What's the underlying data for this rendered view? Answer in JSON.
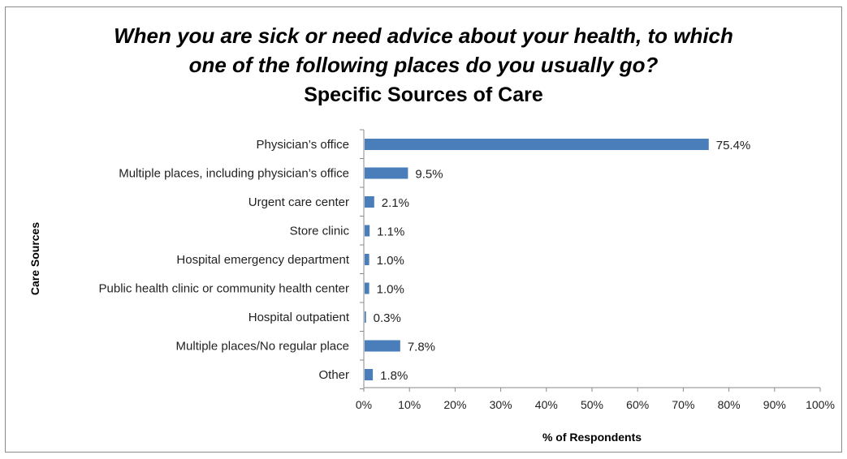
{
  "chart_data": {
    "type": "bar",
    "orientation": "horizontal",
    "title": "When you are sick or need advice about your health, to which one of the following places do you usually go?",
    "title_lines": [
      "When you are sick or need advice about your health, to which",
      "one of the following places do you usually go?"
    ],
    "subtitle": "Specific Sources of Care",
    "xlabel": "% of Respondents",
    "ylabel": "Care Sources",
    "xlim": [
      0,
      100
    ],
    "x_ticks": [
      0,
      10,
      20,
      30,
      40,
      50,
      60,
      70,
      80,
      90,
      100
    ],
    "tick_suffix": "%",
    "grid": false,
    "bar_color": "#4a7ebb",
    "categories": [
      "Physician’s office",
      "Multiple places, including physician’s office",
      "Urgent care center",
      "Store clinic",
      "Hospital emergency department",
      "Public health clinic or community health center",
      "Hospital outpatient",
      "Multiple places/No regular place",
      "Other"
    ],
    "values": [
      75.4,
      9.5,
      2.1,
      1.1,
      1.0,
      1.0,
      0.3,
      7.8,
      1.8
    ],
    "value_labels": [
      "75.4%",
      "9.5%",
      "2.1%",
      "1.1%",
      "1.0%",
      "1.0%",
      "0.3%",
      "7.8%",
      "1.8%"
    ]
  }
}
